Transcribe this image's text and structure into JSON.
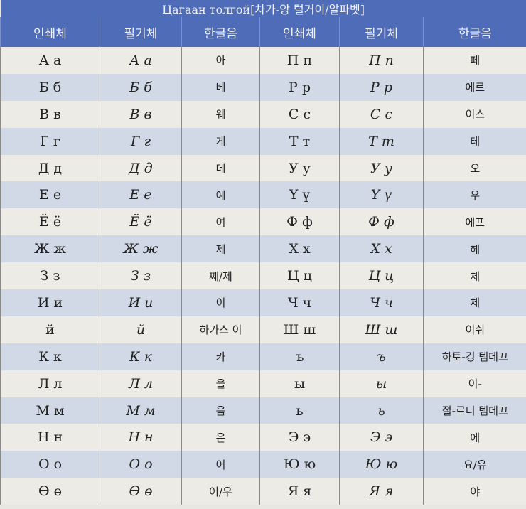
{
  "title": "Цагаан толгой[차가-앙 털거이/알파벳]",
  "headers": [
    "인쇄체",
    "필기체",
    "한글음",
    "인쇄체",
    "필기체",
    "한글음"
  ],
  "rows": [
    [
      "А а",
      "А а",
      "아",
      "П п",
      "П п",
      "페"
    ],
    [
      "Б б",
      "Б б",
      "베",
      "Р р",
      "Р р",
      "에르"
    ],
    [
      "В в",
      "В в",
      "웨",
      "С с",
      "С с",
      "이스"
    ],
    [
      "Г г",
      "Г г",
      "게",
      "Т т",
      "Т т",
      "테"
    ],
    [
      "Д д",
      "Д д",
      "데",
      "У у",
      "У у",
      "오"
    ],
    [
      "Е е",
      "Е е",
      "예",
      "Ү ү",
      "Ү ү",
      "우"
    ],
    [
      "Ё ё",
      "Ё ё",
      "여",
      "Ф ф",
      "Ф ф",
      "에프"
    ],
    [
      "Ж ж",
      "Ж ж",
      "제",
      "Х х",
      "Х х",
      "헤"
    ],
    [
      "З з",
      "З з",
      "쩨/제",
      "Ц ц",
      "Ц ц",
      "체"
    ],
    [
      "И и",
      "И и",
      "이",
      "Ч ч",
      "Ч ч",
      "체"
    ],
    [
      "й",
      "й",
      "하가스 이",
      "Ш ш",
      "Ш ш",
      "이쉬"
    ],
    [
      "К к",
      "К к",
      "카",
      "ъ",
      "ъ",
      "하토-깅 템데끄"
    ],
    [
      "Л л",
      "Л л",
      "을",
      "ы",
      "ы",
      "이-"
    ],
    [
      "М м",
      "М м",
      "음",
      "ь",
      "ь",
      "절-르니 템데끄"
    ],
    [
      "Н н",
      "Н н",
      "은",
      "Э э",
      "Э э",
      "에"
    ],
    [
      "О о",
      "О о",
      "어",
      "Ю ю",
      "Ю ю",
      "요/유"
    ],
    [
      "Ө ө",
      "Ө ө",
      "어/우",
      "Я я",
      "Я я",
      "야"
    ]
  ]
}
